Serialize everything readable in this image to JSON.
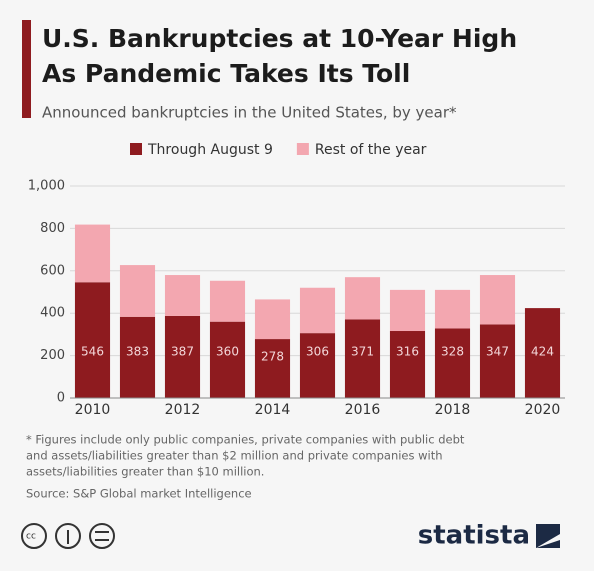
{
  "chart_data": {
    "type": "stacked_bar",
    "title": [
      "U.S. Bankruptcies at 10-Year High",
      "As Pandemic Takes Its Toll"
    ],
    "subtitle": "Announced bankruptcies in the United States, by year*",
    "categories": [
      "2010",
      null,
      "2012",
      null,
      "2014",
      null,
      "2016",
      null,
      "2018",
      null,
      "2020"
    ],
    "series": [
      {
        "name": "Through August 9",
        "color": "#8e1b1f",
        "values": [
          546,
          383,
          387,
          360,
          278,
          306,
          371,
          316,
          328,
          347,
          424
        ]
      },
      {
        "name": "Rest of the year",
        "color": "#f3a7b0",
        "values": [
          272,
          244,
          193,
          193,
          187,
          214,
          199,
          194,
          182,
          233,
          null
        ]
      }
    ],
    "ylim": [
      0,
      1000
    ],
    "yticks": [
      0,
      200,
      400,
      600,
      800,
      {
        "value": 1000,
        "label": "1,000"
      }
    ],
    "grid": true,
    "footnote": [
      "* Figures include only public companies, private companies with public debt",
      "and assets/liabilities greater than $2 million and private companies with",
      "assets/liabilities greater than $10 million."
    ],
    "source": "Source: S&P Global market Intelligence",
    "brand": "statista"
  }
}
